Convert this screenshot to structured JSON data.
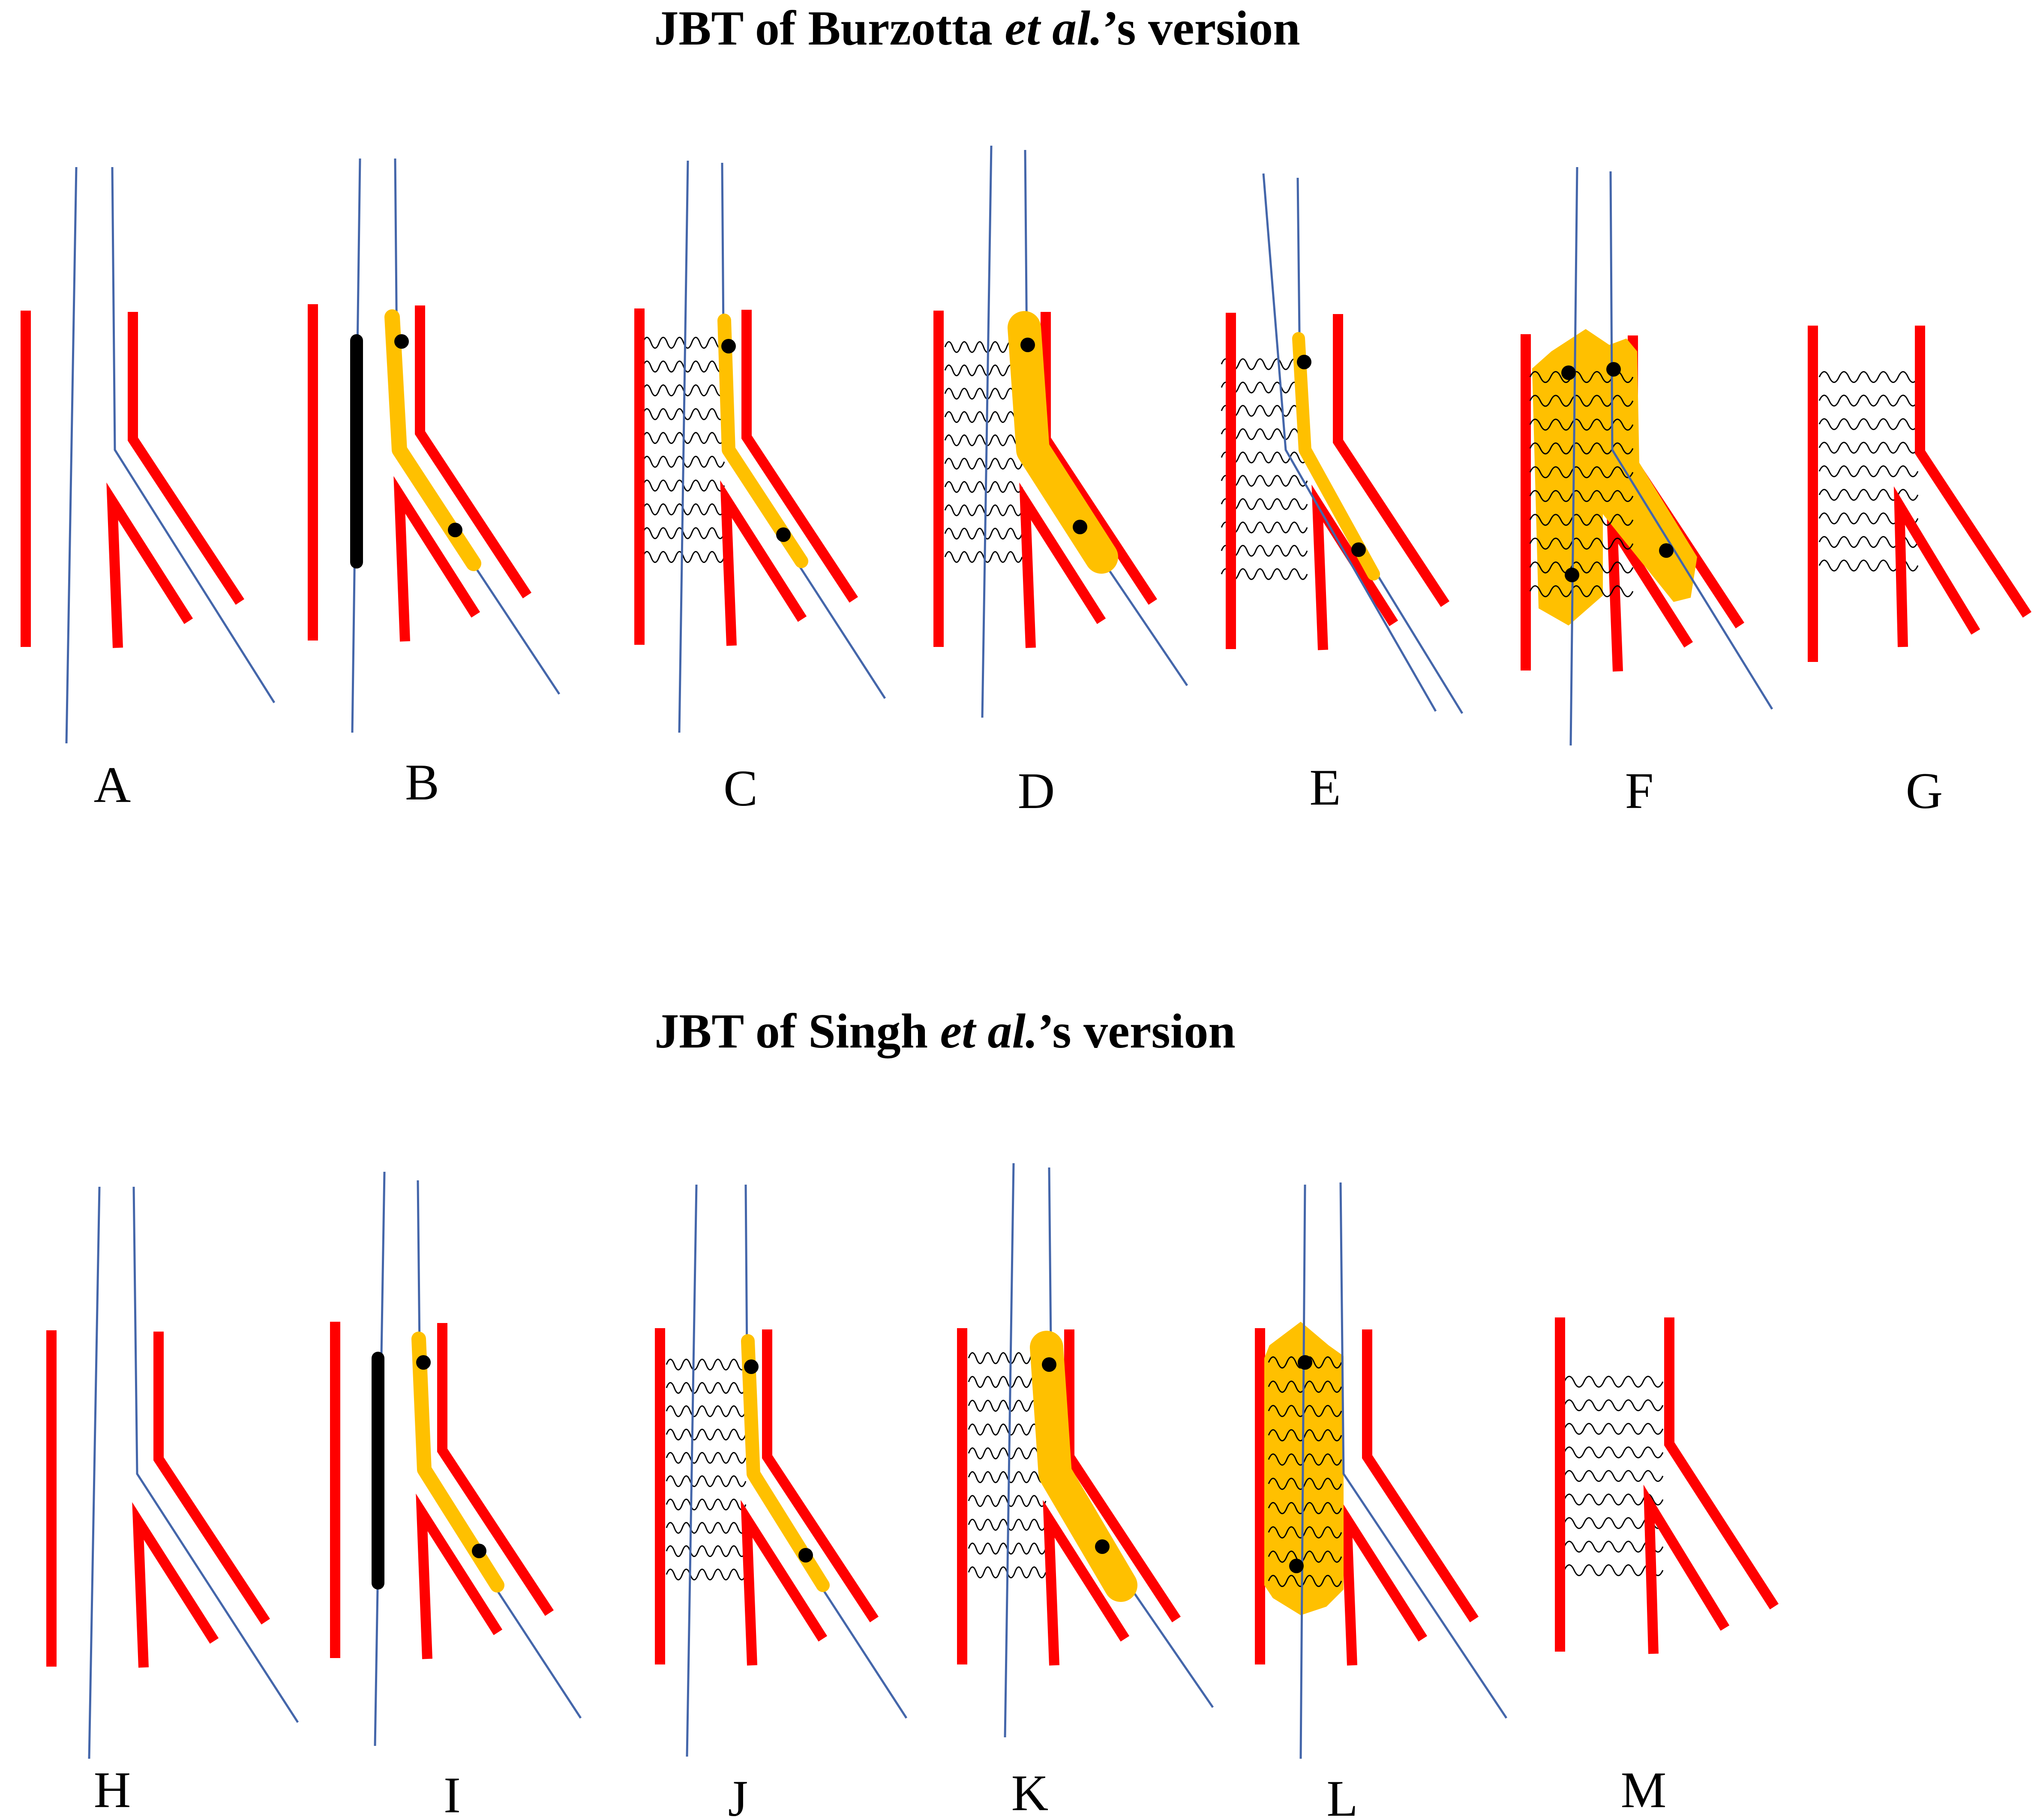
{
  "titles": {
    "top": {
      "prefix": "JBT of  Burzotta ",
      "italic": "et al.",
      "suffix": "’s version"
    },
    "bottom": {
      "prefix": "JBT of  Singh ",
      "italic": "et al.",
      "suffix": "’s version"
    }
  },
  "panel_labels": {
    "A": "A",
    "B": "B",
    "C": "C",
    "D": "D",
    "E": "E",
    "F": "F",
    "G": "G",
    "H": "H",
    "I": "I",
    "J": "J",
    "K": "K",
    "L": "L",
    "M": "M"
  },
  "colors": {
    "vessel": "#ff0000",
    "guidewire": "#4466aa",
    "balloon": "#ffc000",
    "marker": "#000000",
    "jailed_balloon": "#000000",
    "stent_mesh": "#000000"
  }
}
